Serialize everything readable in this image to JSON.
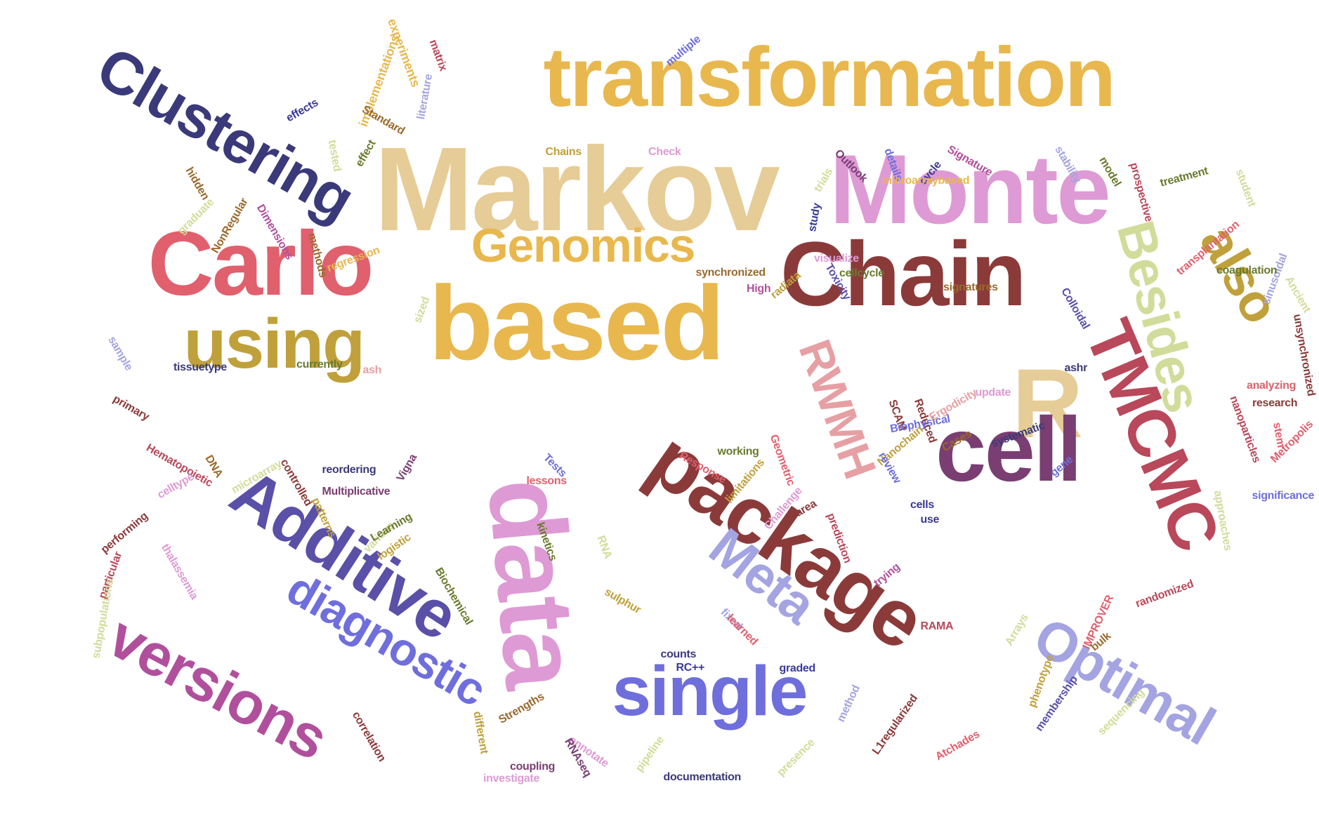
{
  "palette": [
    "#E8B84E",
    "#E6CC96",
    "#DE9AD4",
    "#E0606E",
    "#8B3A3A",
    "#3A3A7A",
    "#C0A03A",
    "#D2DC9A",
    "#B8485A",
    "#7A3E72",
    "#5A50A8",
    "#6E6EDC",
    "#A4A4E2",
    "#B0509C",
    "#E6A0A4",
    "#6A7A2E",
    "#9A6A2E",
    "#3A3A96"
  ],
  "words": [
    {
      "text": "transformation",
      "color": "#E8B84E"
    },
    {
      "text": "Markov",
      "color": "#E6CC96"
    },
    {
      "text": "Monte",
      "color": "#DE9AD4"
    },
    {
      "text": "Clustering",
      "color": "#3A3A7A"
    },
    {
      "text": "Carlo",
      "color": "#E0606E"
    },
    {
      "text": "Genomics",
      "color": "#E8B84E"
    },
    {
      "text": "Chain",
      "color": "#8B3A3A"
    },
    {
      "text": "based",
      "color": "#E8B84E"
    },
    {
      "text": "using",
      "color": "#C0A03A"
    },
    {
      "text": "Besides",
      "color": "#D2DC9A"
    },
    {
      "text": "also",
      "color": "#C0A03A"
    },
    {
      "text": "TMCMC",
      "color": "#B8485A"
    },
    {
      "text": "RWMH",
      "color": "#E6A0A4"
    },
    {
      "text": "R",
      "color": "#E6CC96"
    },
    {
      "text": "package",
      "color": "#8B3A3A"
    },
    {
      "text": "data",
      "color": "#DE9AD4"
    },
    {
      "text": "Additive",
      "color": "#5A50A8"
    },
    {
      "text": "cell",
      "color": "#7A3E72"
    },
    {
      "text": "Meta",
      "color": "#A4A4E2"
    },
    {
      "text": "diagnostic",
      "color": "#6E6EDC"
    },
    {
      "text": "versions",
      "color": "#B0509C"
    },
    {
      "text": "single",
      "color": "#6E6EDC"
    },
    {
      "text": "Optimal",
      "color": "#A4A4E2"
    },
    {
      "text": "experiments",
      "color": "#E8B84E"
    },
    {
      "text": "matrix",
      "color": "#B8485A"
    },
    {
      "text": "multiple",
      "color": "#6E6EDC"
    },
    {
      "text": "implementations",
      "color": "#E8B84E"
    },
    {
      "text": "Standard",
      "color": "#9A6A2E"
    },
    {
      "text": "literature",
      "color": "#A4A4E2"
    },
    {
      "text": "effects",
      "color": "#3A3A96"
    },
    {
      "text": "tested",
      "color": "#D2DC9A"
    },
    {
      "text": "effect",
      "color": "#6A7A2E"
    },
    {
      "text": "Chains",
      "color": "#C0A03A"
    },
    {
      "text": "Check",
      "color": "#DE9AD4"
    },
    {
      "text": "trials",
      "color": "#D2DC9A"
    },
    {
      "text": "Outlook",
      "color": "#7A3E72"
    },
    {
      "text": "details",
      "color": "#6E6EDC"
    },
    {
      "text": "cycle",
      "color": "#3A3A96"
    },
    {
      "text": "Signature",
      "color": "#B0509C"
    },
    {
      "text": "stability",
      "color": "#A4A4E2"
    },
    {
      "text": "model",
      "color": "#6A7A2E"
    },
    {
      "text": "prospective",
      "color": "#B8485A"
    },
    {
      "text": "treatment",
      "color": "#6A7A2E"
    },
    {
      "text": "student",
      "color": "#D2DC9A"
    },
    {
      "text": "hidden",
      "color": "#9A6A2E"
    },
    {
      "text": "graduate",
      "color": "#D2DC9A"
    },
    {
      "text": "NonRegular",
      "color": "#9A6A2E"
    },
    {
      "text": "Dimensions",
      "color": "#B0509C"
    },
    {
      "text": "methods",
      "color": "#9A6A2E"
    },
    {
      "text": "regression",
      "color": "#E8B84E"
    },
    {
      "text": "microarraybased",
      "color": "#E8B84E"
    },
    {
      "text": "study",
      "color": "#3A3A96"
    },
    {
      "text": "transplantation",
      "color": "#E0606E"
    },
    {
      "text": "sinusoidal",
      "color": "#A4A4E2"
    },
    {
      "text": "visualize",
      "color": "#DE9AD4"
    },
    {
      "text": "synchronized",
      "color": "#9A6A2E"
    },
    {
      "text": "radiata",
      "color": "#C0A03A"
    },
    {
      "text": "cellcycle",
      "color": "#6A7A2E"
    },
    {
      "text": "Toxicity",
      "color": "#5A50A8"
    },
    {
      "text": "coagulation",
      "color": "#6A7A2E"
    },
    {
      "text": "Ancient",
      "color": "#D2DC9A"
    },
    {
      "text": "unsynchronized",
      "color": "#8B3A3A"
    },
    {
      "text": "High",
      "color": "#B0509C"
    },
    {
      "text": "signatures",
      "color": "#9A6A2E"
    },
    {
      "text": "Colloidal",
      "color": "#5A50A8"
    },
    {
      "text": "sized",
      "color": "#D2DC9A"
    },
    {
      "text": "sample",
      "color": "#A4A4E2"
    },
    {
      "text": "tissuetype",
      "color": "#3A3A7A"
    },
    {
      "text": "currently",
      "color": "#6A7A2E"
    },
    {
      "text": "ash",
      "color": "#E6A0A4"
    },
    {
      "text": "SCAM",
      "color": "#8B3A3A"
    },
    {
      "text": "Reduced",
      "color": "#8B3A3A"
    },
    {
      "text": "Ergodicity",
      "color": "#E6A0A4"
    },
    {
      "text": "update",
      "color": "#DE9AD4"
    },
    {
      "text": "ashr",
      "color": "#3A3A7A"
    },
    {
      "text": "nanoparticles",
      "color": "#B8485A"
    },
    {
      "text": "analyzing",
      "color": "#E0606E"
    },
    {
      "text": "research",
      "color": "#8B3A3A"
    },
    {
      "text": "stem",
      "color": "#E0606E"
    },
    {
      "text": "Metropolis",
      "color": "#E0606E"
    },
    {
      "text": "primary",
      "color": "#8B3A3A"
    },
    {
      "text": "Hematopoietic",
      "color": "#B8485A"
    },
    {
      "text": "DNA",
      "color": "#9A6A2E"
    },
    {
      "text": "microarray",
      "color": "#D2DC9A"
    },
    {
      "text": "controlled",
      "color": "#8B3A3A"
    },
    {
      "text": "reordering",
      "color": "#3A3A7A"
    },
    {
      "text": "Vigna",
      "color": "#7A3E72"
    },
    {
      "text": "Tests",
      "color": "#6E6EDC"
    },
    {
      "text": "lessons",
      "color": "#E0606E"
    },
    {
      "text": "Response",
      "color": "#E0606E"
    },
    {
      "text": "working",
      "color": "#6A7A2E"
    },
    {
      "text": "Geometric",
      "color": "#E0606E"
    },
    {
      "text": "Biophysical",
      "color": "#6E6EDC"
    },
    {
      "text": "Nanochain",
      "color": "#C0A03A"
    },
    {
      "text": "Cases",
      "color": "#9A6A2E"
    },
    {
      "text": "systematic",
      "color": "#3A3A7A"
    },
    {
      "text": "gene",
      "color": "#6E6EDC"
    },
    {
      "text": "review",
      "color": "#6E6EDC"
    },
    {
      "text": "limitations",
      "color": "#C0A03A"
    },
    {
      "text": "Challenge",
      "color": "#DE9AD4"
    },
    {
      "text": "area",
      "color": "#8B3A3A"
    },
    {
      "text": "approaches",
      "color": "#D2DC9A"
    },
    {
      "text": "significance",
      "color": "#6E6EDC"
    },
    {
      "text": "celltype",
      "color": "#DE9AD4"
    },
    {
      "text": "Multiplicative",
      "color": "#7A3E72"
    },
    {
      "text": "patterns",
      "color": "#C0A03A"
    },
    {
      "text": "performing",
      "color": "#8B3A3A"
    },
    {
      "text": "various",
      "color": "#D2DC9A"
    },
    {
      "text": "Learning",
      "color": "#6A7A2E"
    },
    {
      "text": "kinetics",
      "color": "#6A7A2E"
    },
    {
      "text": "cells",
      "color": "#3A3A96"
    },
    {
      "text": "use",
      "color": "#3A3A96"
    },
    {
      "text": "prediction",
      "color": "#B8485A"
    },
    {
      "text": "particular",
      "color": "#B8485A"
    },
    {
      "text": "thalassemia",
      "color": "#DE9AD4"
    },
    {
      "text": "logistic",
      "color": "#C0A03A"
    },
    {
      "text": "RNA",
      "color": "#D2DC9A"
    },
    {
      "text": "trying",
      "color": "#B0509C"
    },
    {
      "text": "subpopulations",
      "color": "#D2DC9A"
    },
    {
      "text": "Biochemical",
      "color": "#6A7A2E"
    },
    {
      "text": "sulphur",
      "color": "#C0A03A"
    },
    {
      "text": "fixed",
      "color": "#A4A4E2"
    },
    {
      "text": "RAMA",
      "color": "#B8485A"
    },
    {
      "text": "Arrays",
      "color": "#D2DC9A"
    },
    {
      "text": "IMPROVER",
      "color": "#E0606E"
    },
    {
      "text": "randomized",
      "color": "#B8485A"
    },
    {
      "text": "bulk",
      "color": "#9A6A2E"
    },
    {
      "text": "learned",
      "color": "#E0606E"
    },
    {
      "text": "counts",
      "color": "#3A3A7A"
    },
    {
      "text": "RC++",
      "color": "#3A3A96"
    },
    {
      "text": "graded",
      "color": "#3A3A96"
    },
    {
      "text": "phenotype",
      "color": "#C0A03A"
    },
    {
      "text": "method",
      "color": "#A4A4E2"
    },
    {
      "text": "membership",
      "color": "#5A50A8"
    },
    {
      "text": "correlation",
      "color": "#8B3A3A"
    },
    {
      "text": "different",
      "color": "#C0A03A"
    },
    {
      "text": "Strengths",
      "color": "#9A6A2E"
    },
    {
      "text": "annotate",
      "color": "#DE9AD4"
    },
    {
      "text": "coupling",
      "color": "#7A3E72"
    },
    {
      "text": "RNAseq",
      "color": "#7A3E72"
    },
    {
      "text": "pipeline",
      "color": "#D2DC9A"
    },
    {
      "text": "investigate",
      "color": "#DE9AD4"
    },
    {
      "text": "documentation",
      "color": "#3A3A7A"
    },
    {
      "text": "presence",
      "color": "#D2DC9A"
    },
    {
      "text": "L1regularized",
      "color": "#8B3A3A"
    },
    {
      "text": "Atchades",
      "color": "#E0606E"
    },
    {
      "text": "sequencing",
      "color": "#D2DC9A"
    }
  ]
}
